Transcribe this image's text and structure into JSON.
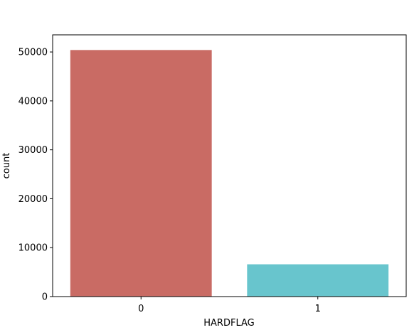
{
  "chart_data": {
    "type": "bar",
    "title": "",
    "xlabel": "HARDFLAG",
    "ylabel": "count",
    "categories": [
      "0",
      "1"
    ],
    "values": [
      50400,
      6600
    ],
    "colors": [
      "#c96b64",
      "#68c5cd"
    ],
    "ylim": [
      0,
      53500
    ],
    "yticks": [
      0,
      10000,
      20000,
      30000,
      40000,
      50000
    ],
    "ytick_labels": [
      "0",
      "10000",
      "20000",
      "30000",
      "40000",
      "50000"
    ],
    "grid": false,
    "legend": "none"
  }
}
